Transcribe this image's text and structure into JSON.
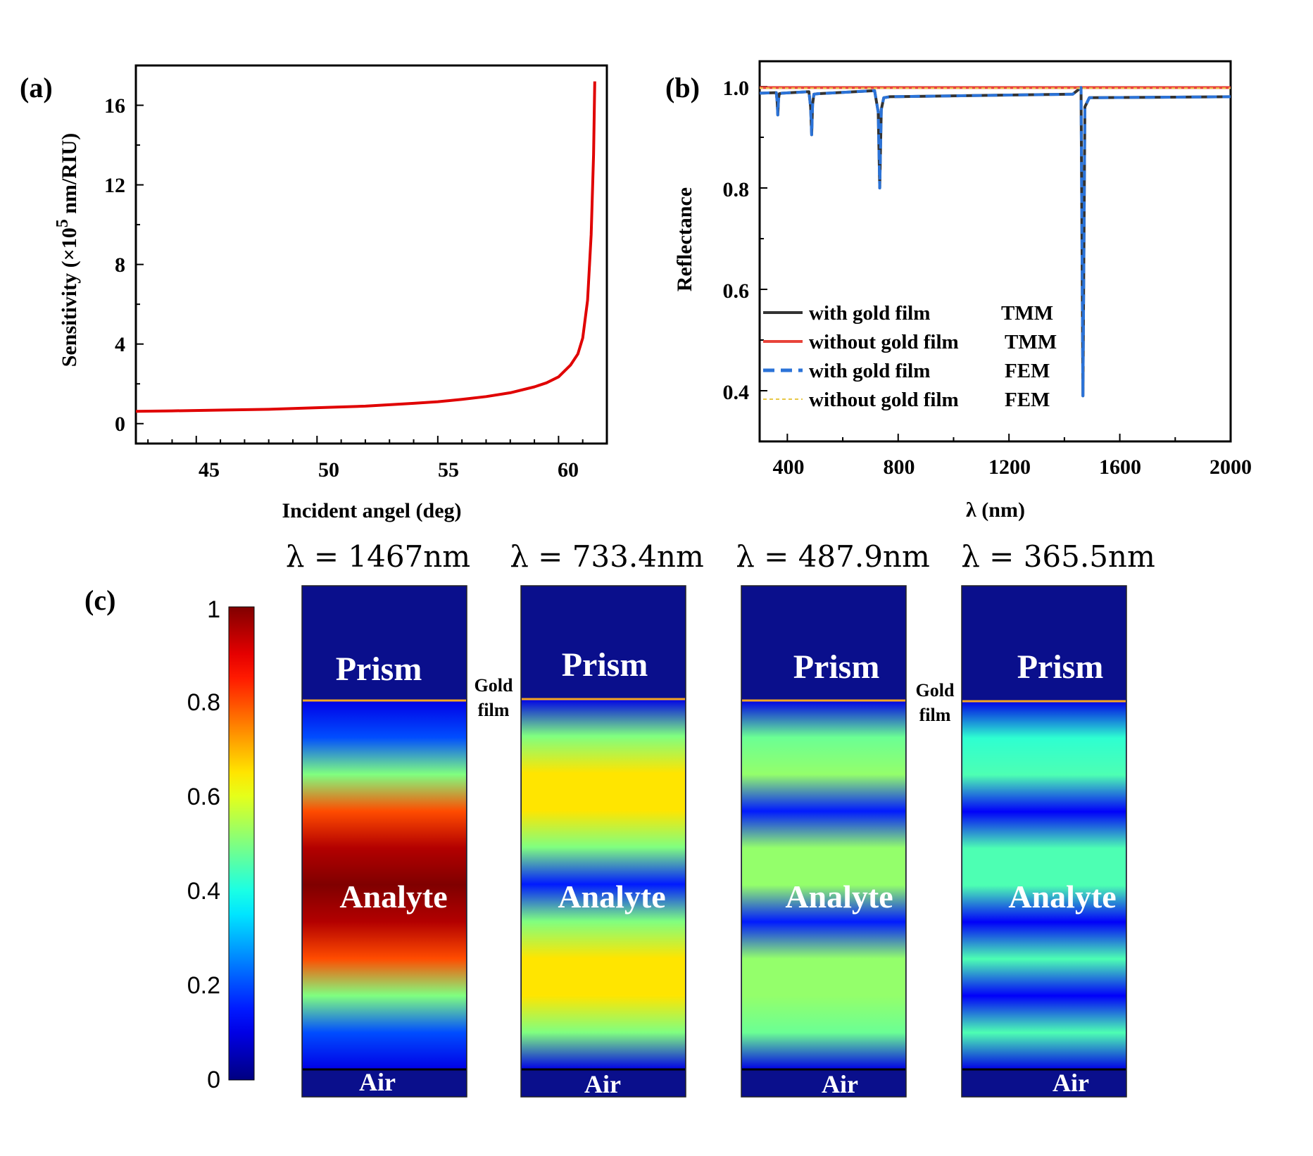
{
  "colors": {
    "sensitivity_curve": "#e00000",
    "tmm_with_gold": "#333333",
    "tmm_without_gold": "#e8433a",
    "fem_with_gold": "#2b73d8",
    "fem_without_gold": "#e8c847",
    "gold_film_line": "#f5a623",
    "prism_air_blue": "#0a0f8c"
  },
  "chart_data": [
    {
      "panel": "(a)",
      "type": "line",
      "xlabel": "Incident angel (deg)",
      "ylabel_prefix": "Sensitivity (×10",
      "ylabel_exp": "5",
      "ylabel_suffix": " nm/RIU)",
      "xlim": [
        42.5,
        62.0
      ],
      "ylim": [
        -1.0,
        18.0
      ],
      "xticks": [
        "45",
        "50",
        "55",
        "60"
      ],
      "yticks": [
        "0",
        "4",
        "8",
        "12",
        "16"
      ],
      "series": [
        {
          "name": "Sensitivity",
          "x": [
            42.5,
            44,
            46,
            48,
            50,
            52,
            54,
            55,
            56,
            57,
            58,
            59,
            59.5,
            60,
            60.5,
            60.8,
            61.0,
            61.2,
            61.35,
            61.45,
            61.5
          ],
          "y": [
            0.62,
            0.64,
            0.68,
            0.72,
            0.8,
            0.88,
            1.02,
            1.1,
            1.22,
            1.36,
            1.55,
            1.85,
            2.05,
            2.35,
            2.95,
            3.5,
            4.3,
            6.2,
            9.5,
            13.5,
            17.2
          ]
        }
      ]
    },
    {
      "panel": "(b)",
      "type": "line",
      "xlabel": "λ (nm)",
      "ylabel": "Reflectance",
      "xlim": [
        300,
        2000
      ],
      "ylim": [
        0.3,
        1.05
      ],
      "xticks": [
        "400",
        "800",
        "1200",
        "1600",
        "2000"
      ],
      "yticks": [
        "0.4",
        "0.6",
        "0.8",
        "1.0"
      ],
      "legend": [
        {
          "label": "with gold film",
          "method": "TMM"
        },
        {
          "label": "without gold film",
          "method": "TMM"
        },
        {
          "label": "with gold film",
          "method": "FEM"
        },
        {
          "label": "without gold film",
          "method": "FEM"
        }
      ],
      "series": [
        {
          "name": "with gold film TMM",
          "x": [
            300,
            360,
            363,
            365.5,
            368,
            371,
            380,
            478,
            484,
            487.9,
            491,
            496,
            510,
            715,
            728,
            733.4,
            739,
            748,
            770,
            1430,
            1460,
            1467,
            1474,
            1490,
            2000
          ],
          "y": [
            0.987,
            0.988,
            0.972,
            0.944,
            0.975,
            0.986,
            0.987,
            0.99,
            0.96,
            0.905,
            0.965,
            0.985,
            0.986,
            0.992,
            0.95,
            0.8,
            0.955,
            0.978,
            0.98,
            0.985,
            0.998,
            0.39,
            0.96,
            0.978,
            0.98
          ]
        },
        {
          "name": "without gold film TMM",
          "x": [
            300,
            2000
          ],
          "y": [
            0.998,
            0.998
          ]
        },
        {
          "name": "with gold film FEM",
          "x": [
            300,
            360,
            363,
            365.5,
            368,
            371,
            380,
            478,
            484,
            487.9,
            491,
            496,
            510,
            715,
            728,
            733.4,
            739,
            748,
            770,
            1430,
            1460,
            1467,
            1474,
            1490,
            2000
          ],
          "y": [
            0.987,
            0.988,
            0.972,
            0.944,
            0.975,
            0.986,
            0.987,
            0.99,
            0.96,
            0.905,
            0.965,
            0.985,
            0.986,
            0.992,
            0.95,
            0.8,
            0.955,
            0.978,
            0.98,
            0.985,
            0.998,
            0.39,
            0.96,
            0.978,
            0.98
          ]
        },
        {
          "name": "without gold film FEM",
          "x": [
            300,
            2000
          ],
          "y": [
            0.997,
            0.997
          ]
        }
      ]
    },
    {
      "panel": "(c)",
      "type": "heatmap",
      "colorbar_ticks": [
        "0",
        "0.2",
        "0.4",
        "0.6",
        "0.8",
        "1"
      ],
      "colorbar_range": [
        0,
        1
      ],
      "region_labels": {
        "prism": "Prism",
        "analyte": "Analyte",
        "air": "Air",
        "gold_film": [
          "Gold",
          "film"
        ]
      },
      "columns": [
        {
          "wavelength_label": "λ = 1467nm",
          "profile": [
            0.1,
            0.2,
            0.5,
            0.8,
            0.95,
            1.0,
            0.95,
            0.8,
            0.5,
            0.2,
            0.1
          ]
        },
        {
          "wavelength_label": "λ = 733.4nm",
          "profile": [
            0.1,
            0.5,
            0.65,
            0.65,
            0.5,
            0.15,
            0.5,
            0.65,
            0.65,
            0.5,
            0.1
          ]
        },
        {
          "wavelength_label": "λ = 487.9nm",
          "profile": [
            0.1,
            0.48,
            0.52,
            0.15,
            0.52,
            0.52,
            0.15,
            0.52,
            0.52,
            0.48,
            0.1
          ]
        },
        {
          "wavelength_label": "λ = 365.5nm",
          "profile": [
            0.1,
            0.42,
            0.45,
            0.12,
            0.45,
            0.45,
            0.12,
            0.45,
            0.12,
            0.45,
            0.1
          ]
        }
      ]
    }
  ]
}
